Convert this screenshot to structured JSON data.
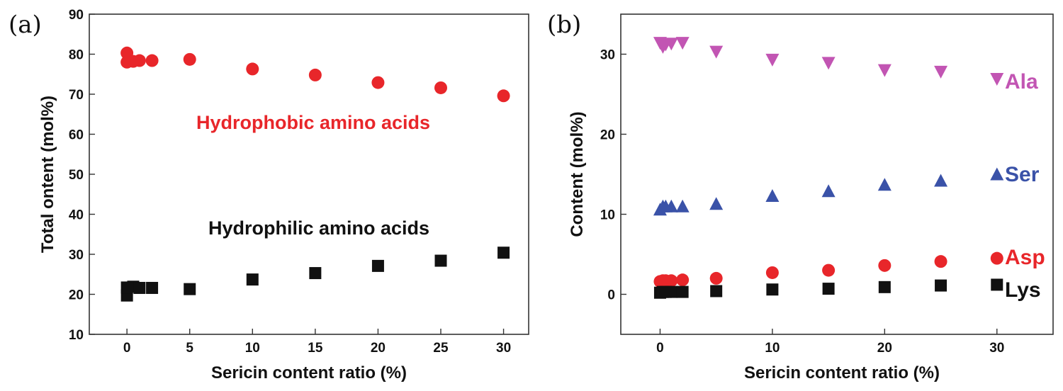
{
  "chart_data": [
    {
      "panel": "(a)",
      "type": "scatter",
      "xlabel": "Sericin content ratio (%)",
      "ylabel": "Total ontent (mol%)",
      "xlim": [
        -3,
        32
      ],
      "ylim": [
        10,
        90
      ],
      "xticks": [
        0,
        5,
        10,
        15,
        20,
        25,
        30
      ],
      "yticks": [
        10,
        20,
        30,
        40,
        50,
        60,
        70,
        80,
        90
      ],
      "annotations": [
        {
          "text": "Hydrophobic amino acids",
          "color": "#e8262a"
        },
        {
          "text": "Hydrophilic amino acids",
          "color": "#111111"
        }
      ],
      "series": [
        {
          "name": "Hydrophobic amino acids",
          "marker": "circle",
          "color": "#e8262a",
          "x": [
            0,
            0,
            0.5,
            1,
            2,
            5,
            10,
            15,
            20,
            25,
            30
          ],
          "y": [
            80.3,
            78.0,
            78.2,
            78.4,
            78.4,
            78.7,
            76.3,
            74.8,
            72.9,
            71.6,
            69.6
          ]
        },
        {
          "name": "Hydrophilic amino acids",
          "marker": "square",
          "color": "#111111",
          "x": [
            0,
            0,
            0.5,
            1,
            2,
            5,
            10,
            15,
            20,
            25,
            30
          ],
          "y": [
            19.7,
            21.7,
            21.9,
            21.6,
            21.6,
            21.3,
            23.7,
            25.3,
            27.1,
            28.4,
            30.4
          ]
        }
      ]
    },
    {
      "panel": "(b)",
      "type": "scatter",
      "xlabel": "Sericin content ratio (%)",
      "ylabel": "Content (mol%)",
      "xlim": [
        -3.5,
        35
      ],
      "ylim": [
        -5,
        35
      ],
      "xticks": [
        0,
        10,
        20,
        30
      ],
      "yticks": [
        0,
        10,
        20,
        30
      ],
      "series": [
        {
          "name": "Ala",
          "marker": "triangle-down",
          "color": "#c255b3",
          "x": [
            0,
            0.25,
            0.5,
            1,
            2,
            5,
            10,
            15,
            20,
            25,
            30
          ],
          "y": [
            31.4,
            30.9,
            31.2,
            31.3,
            31.4,
            30.3,
            29.3,
            28.9,
            28.0,
            27.8,
            26.9
          ]
        },
        {
          "name": "Ser",
          "marker": "triangle-up",
          "color": "#3a52a8",
          "x": [
            0,
            0.25,
            0.5,
            1,
            2,
            5,
            10,
            15,
            20,
            25,
            30
          ],
          "y": [
            10.6,
            11.0,
            11.0,
            11.0,
            11.0,
            11.3,
            12.3,
            12.9,
            13.7,
            14.2,
            15.0
          ]
        },
        {
          "name": "Asp",
          "marker": "circle",
          "color": "#e8262a",
          "x": [
            0,
            0.25,
            0.5,
            1,
            2,
            5,
            10,
            15,
            20,
            25,
            30
          ],
          "y": [
            1.6,
            1.7,
            1.7,
            1.7,
            1.8,
            2.0,
            2.7,
            3.0,
            3.6,
            4.1,
            4.5
          ]
        },
        {
          "name": "Lys",
          "marker": "square",
          "color": "#111111",
          "x": [
            0,
            0.25,
            0.5,
            1,
            2,
            5,
            10,
            15,
            20,
            25,
            30
          ],
          "y": [
            0.2,
            0.3,
            0.3,
            0.3,
            0.3,
            0.4,
            0.6,
            0.7,
            0.9,
            1.1,
            1.2
          ]
        }
      ]
    }
  ]
}
